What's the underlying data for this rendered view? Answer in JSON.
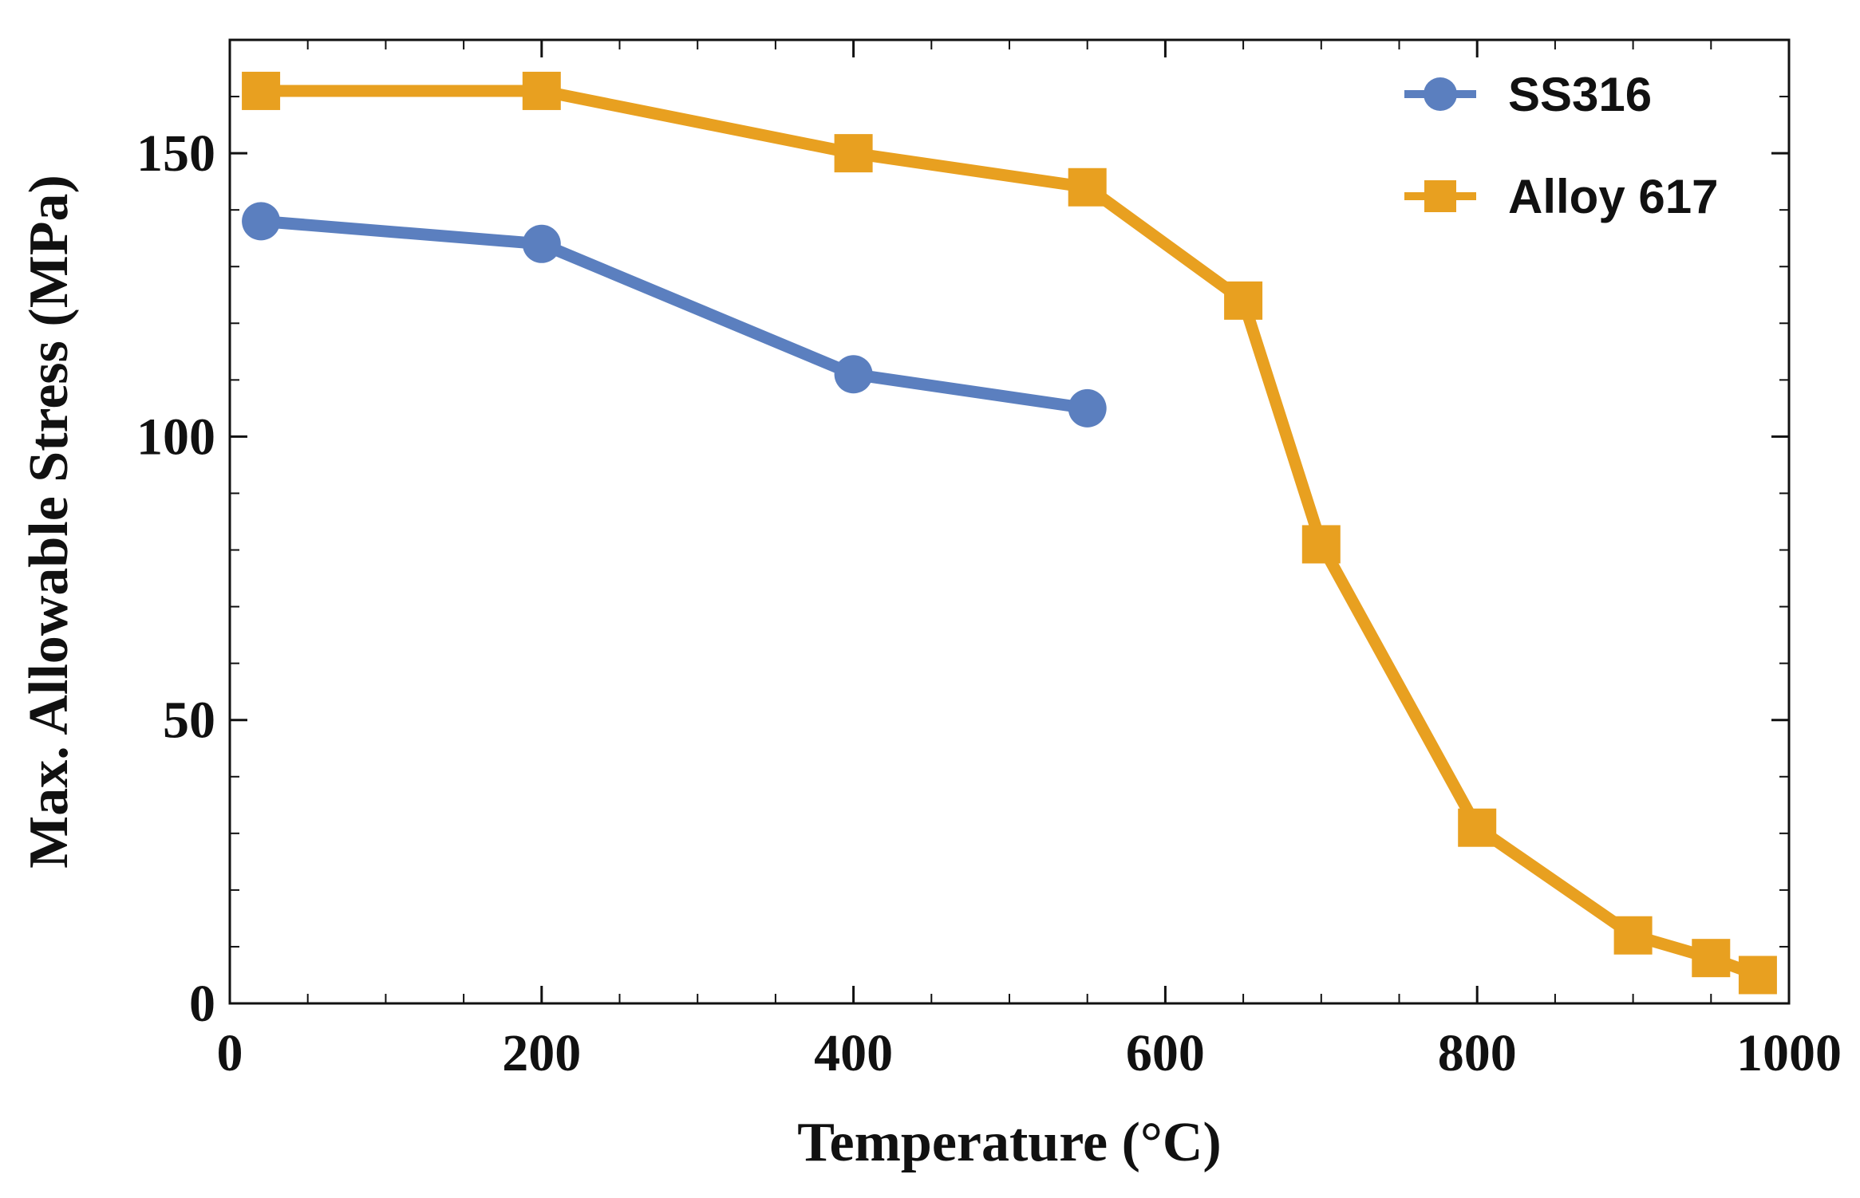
{
  "chart_data": {
    "type": "line",
    "title": "",
    "xlabel": "Temperature (°C)",
    "ylabel": "Max. Allowable Stress (MPa)",
    "xlim": [
      0,
      1000
    ],
    "ylim": [
      0,
      170
    ],
    "x_ticks": [
      0,
      200,
      400,
      600,
      800,
      1000
    ],
    "y_ticks": [
      0,
      50,
      100,
      150
    ],
    "x_minor_step": 50,
    "y_minor_step": 10,
    "grid": false,
    "legend_position": "top-right",
    "series": [
      {
        "name": "SS316",
        "marker": "circle",
        "color": "#5B7FBF",
        "x": [
          20,
          200,
          400,
          550
        ],
        "y": [
          138,
          134,
          111,
          105
        ]
      },
      {
        "name": "Alloy 617",
        "marker": "square",
        "color": "#E8A020",
        "x": [
          20,
          200,
          400,
          550,
          650,
          700,
          800,
          900,
          950,
          980
        ],
        "y": [
          161,
          161,
          150,
          144,
          124,
          81,
          31,
          12,
          8,
          5
        ]
      }
    ]
  }
}
